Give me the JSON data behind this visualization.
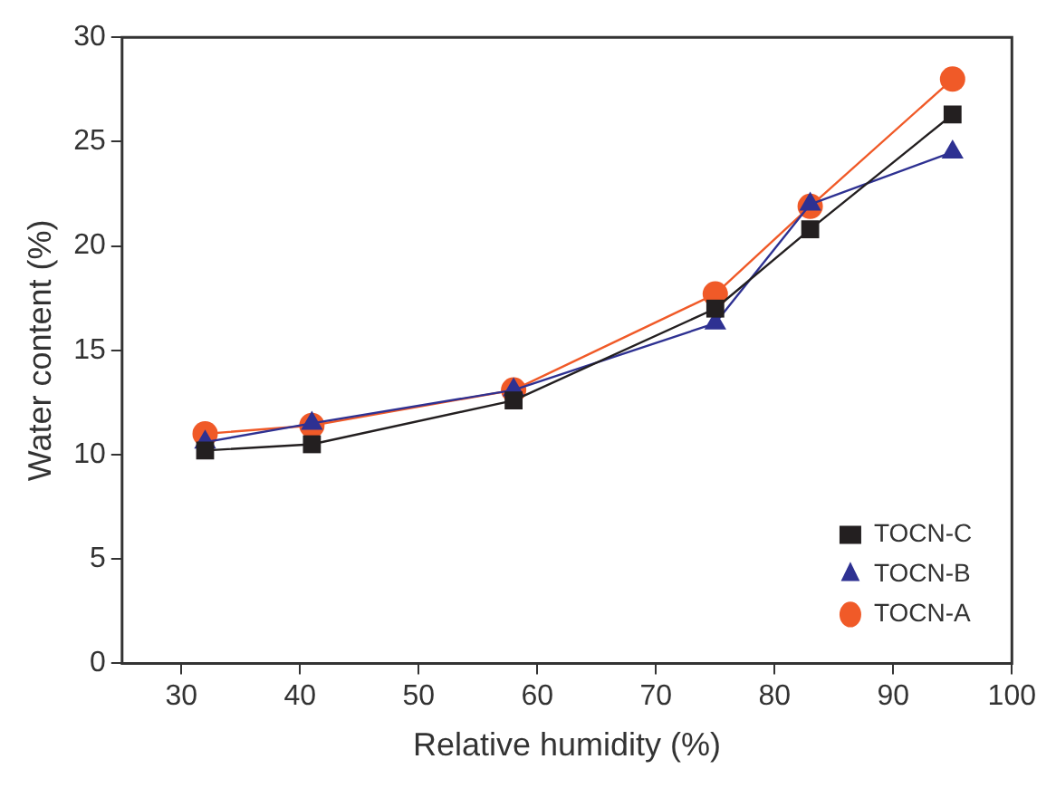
{
  "chart_data": {
    "type": "line",
    "xlabel": "Relative humidity (%)",
    "ylabel": "Water content (%)",
    "x": [
      32,
      41,
      58,
      75,
      83,
      95
    ],
    "series": [
      {
        "name": "TOCN-A",
        "color": "#f05a28",
        "marker": "circle",
        "values": [
          11.0,
          11.4,
          13.1,
          17.7,
          21.9,
          28.0
        ]
      },
      {
        "name": "TOCN-B",
        "color": "#2e3192",
        "marker": "triangle",
        "values": [
          10.6,
          11.5,
          13.1,
          16.3,
          22.0,
          24.5
        ]
      },
      {
        "name": "TOCN-C",
        "color": "#231f20",
        "marker": "square",
        "values": [
          10.2,
          10.5,
          12.6,
          17.0,
          20.8,
          26.3
        ]
      }
    ],
    "xlim": [
      25,
      100
    ],
    "xticks": [
      30,
      40,
      50,
      60,
      70,
      80,
      90,
      100
    ],
    "ylim": [
      0,
      30
    ],
    "yticks": [
      0,
      5,
      10,
      15,
      20,
      25,
      30
    ],
    "grid": false,
    "legend": "bottom right"
  }
}
